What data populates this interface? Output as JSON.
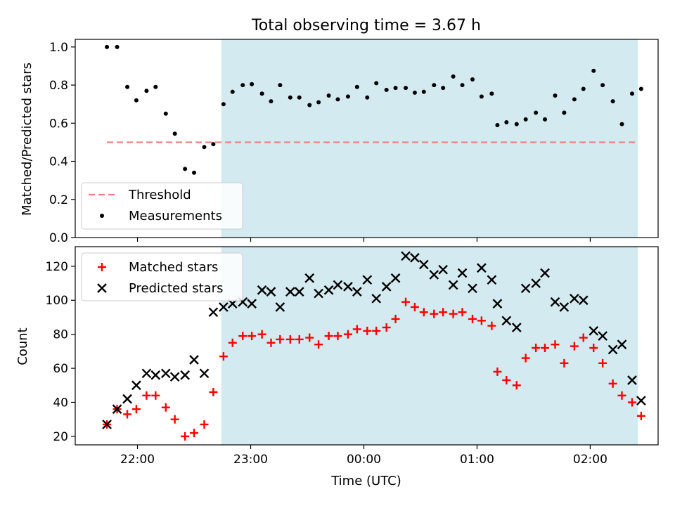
{
  "figure": {
    "title": "Total observing time = 3.67 h",
    "shaded_region_color": "#d3eaf0"
  },
  "chart_data": [
    {
      "type": "scatter",
      "panel": "top",
      "title": "Total observing time = 3.67 h",
      "xlabel": "",
      "ylabel": "Matched/Predicted stars",
      "xlim": [
        21.45,
        26.6
      ],
      "ylim": [
        0.0,
        1.04
      ],
      "yticks": [
        0.0,
        0.2,
        0.4,
        0.6,
        0.8,
        1.0
      ],
      "ytick_labels": [
        "0.0",
        "0.2",
        "0.4",
        "0.6",
        "0.8",
        "1.0"
      ],
      "xticks": [
        22,
        23,
        24,
        25,
        26
      ],
      "xtick_labels": [
        "",
        "",
        "",
        "",
        ""
      ],
      "shaded_x": [
        22.74,
        26.42
      ],
      "legend_position": "lower left",
      "threshold": {
        "name": "Threshold",
        "value": 0.5,
        "x_range": [
          21.73,
          26.42
        ],
        "color": "#f08080"
      },
      "series": [
        {
          "name": "Measurements",
          "color": "#000000",
          "marker": "dot",
          "points": [
            [
              21.73,
              1.0
            ],
            [
              21.82,
              1.0
            ],
            [
              21.91,
              0.79
            ],
            [
              21.99,
              0.72
            ],
            [
              22.08,
              0.77
            ],
            [
              22.16,
              0.79
            ],
            [
              22.25,
              0.65
            ],
            [
              22.33,
              0.545
            ],
            [
              22.42,
              0.36
            ],
            [
              22.5,
              0.34
            ],
            [
              22.59,
              0.475
            ],
            [
              22.67,
              0.49
            ],
            [
              22.76,
              0.7
            ],
            [
              22.84,
              0.765
            ],
            [
              22.93,
              0.8
            ],
            [
              23.01,
              0.805
            ],
            [
              23.1,
              0.755
            ],
            [
              23.18,
              0.715
            ],
            [
              23.26,
              0.8
            ],
            [
              23.35,
              0.735
            ],
            [
              23.43,
              0.735
            ],
            [
              23.52,
              0.695
            ],
            [
              23.6,
              0.71
            ],
            [
              23.69,
              0.745
            ],
            [
              23.77,
              0.725
            ],
            [
              23.86,
              0.74
            ],
            [
              23.94,
              0.79
            ],
            [
              24.03,
              0.735
            ],
            [
              24.11,
              0.81
            ],
            [
              24.2,
              0.775
            ],
            [
              24.28,
              0.785
            ],
            [
              24.37,
              0.785
            ],
            [
              24.45,
              0.76
            ],
            [
              24.53,
              0.765
            ],
            [
              24.62,
              0.8
            ],
            [
              24.7,
              0.785
            ],
            [
              24.79,
              0.845
            ],
            [
              24.87,
              0.8
            ],
            [
              24.96,
              0.83
            ],
            [
              25.04,
              0.74
            ],
            [
              25.13,
              0.755
            ],
            [
              25.18,
              0.59
            ],
            [
              25.26,
              0.605
            ],
            [
              25.35,
              0.595
            ],
            [
              25.43,
              0.62
            ],
            [
              25.52,
              0.655
            ],
            [
              25.6,
              0.62
            ],
            [
              25.69,
              0.745
            ],
            [
              25.77,
              0.655
            ],
            [
              25.86,
              0.725
            ],
            [
              25.94,
              0.78
            ],
            [
              26.03,
              0.875
            ],
            [
              26.11,
              0.8
            ],
            [
              26.2,
              0.715
            ],
            [
              26.28,
              0.595
            ],
            [
              26.37,
              0.755
            ],
            [
              26.45,
              0.78
            ]
          ]
        }
      ]
    },
    {
      "type": "scatter",
      "panel": "bottom",
      "xlabel": "Time (UTC)",
      "ylabel": "Count",
      "xlim": [
        21.45,
        26.6
      ],
      "ylim": [
        15,
        131.5
      ],
      "yticks": [
        20,
        40,
        60,
        80,
        100,
        120
      ],
      "ytick_labels": [
        "20",
        "40",
        "60",
        "80",
        "100",
        "120"
      ],
      "xticks": [
        22,
        23,
        24,
        25,
        26
      ],
      "xtick_labels": [
        "22:00",
        "23:00",
        "00:00",
        "01:00",
        "02:00"
      ],
      "shaded_x": [
        22.74,
        26.42
      ],
      "legend_position": "upper left",
      "series": [
        {
          "name": "Matched stars",
          "color": "#ff0000",
          "marker": "plus",
          "points": [
            [
              21.73,
              27
            ],
            [
              21.82,
              36
            ],
            [
              21.91,
              33
            ],
            [
              21.99,
              36
            ],
            [
              22.08,
              44
            ],
            [
              22.16,
              44
            ],
            [
              22.25,
              37
            ],
            [
              22.33,
              30
            ],
            [
              22.42,
              20
            ],
            [
              22.5,
              22
            ],
            [
              22.59,
              27
            ],
            [
              22.67,
              46
            ],
            [
              22.76,
              67
            ],
            [
              22.84,
              75
            ],
            [
              22.93,
              79
            ],
            [
              23.01,
              79
            ],
            [
              23.1,
              80
            ],
            [
              23.18,
              75
            ],
            [
              23.26,
              77
            ],
            [
              23.35,
              77
            ],
            [
              23.43,
              77
            ],
            [
              23.52,
              78
            ],
            [
              23.6,
              74
            ],
            [
              23.69,
              79
            ],
            [
              23.77,
              79
            ],
            [
              23.86,
              80
            ],
            [
              23.94,
              83
            ],
            [
              24.03,
              82
            ],
            [
              24.11,
              82
            ],
            [
              24.2,
              84
            ],
            [
              24.28,
              89
            ],
            [
              24.37,
              99
            ],
            [
              24.45,
              96
            ],
            [
              24.53,
              93
            ],
            [
              24.62,
              92
            ],
            [
              24.7,
              93
            ],
            [
              24.79,
              92
            ],
            [
              24.87,
              93
            ],
            [
              24.96,
              89
            ],
            [
              25.04,
              88
            ],
            [
              25.13,
              85
            ],
            [
              25.18,
              58
            ],
            [
              25.26,
              53
            ],
            [
              25.35,
              50
            ],
            [
              25.43,
              66
            ],
            [
              25.52,
              72
            ],
            [
              25.6,
              72
            ],
            [
              25.69,
              74
            ],
            [
              25.77,
              63
            ],
            [
              25.86,
              73
            ],
            [
              25.94,
              78
            ],
            [
              26.03,
              72
            ],
            [
              26.11,
              63
            ],
            [
              26.2,
              51
            ],
            [
              26.28,
              44
            ],
            [
              26.37,
              40
            ],
            [
              26.45,
              32
            ]
          ]
        },
        {
          "name": "Predicted stars",
          "color": "#000000",
          "marker": "x",
          "points": [
            [
              21.73,
              27
            ],
            [
              21.82,
              36
            ],
            [
              21.91,
              42
            ],
            [
              21.99,
              50
            ],
            [
              22.08,
              57
            ],
            [
              22.16,
              56
            ],
            [
              22.25,
              57
            ],
            [
              22.33,
              55
            ],
            [
              22.42,
              56
            ],
            [
              22.5,
              65
            ],
            [
              22.59,
              57
            ],
            [
              22.67,
              93
            ],
            [
              22.76,
              96
            ],
            [
              22.84,
              98
            ],
            [
              22.93,
              99
            ],
            [
              23.01,
              98
            ],
            [
              23.1,
              106
            ],
            [
              23.18,
              105
            ],
            [
              23.26,
              96
            ],
            [
              23.35,
              105
            ],
            [
              23.43,
              105
            ],
            [
              23.52,
              113
            ],
            [
              23.6,
              104
            ],
            [
              23.69,
              106
            ],
            [
              23.77,
              109
            ],
            [
              23.86,
              108
            ],
            [
              23.94,
              105
            ],
            [
              24.03,
              112
            ],
            [
              24.11,
              101
            ],
            [
              24.2,
              108
            ],
            [
              24.28,
              113
            ],
            [
              24.37,
              126
            ],
            [
              24.45,
              125
            ],
            [
              24.53,
              121
            ],
            [
              24.62,
              115
            ],
            [
              24.7,
              118
            ],
            [
              24.79,
              109
            ],
            [
              24.87,
              116
            ],
            [
              24.96,
              107
            ],
            [
              25.04,
              119
            ],
            [
              25.13,
              112
            ],
            [
              25.18,
              98
            ],
            [
              25.26,
              88
            ],
            [
              25.35,
              84
            ],
            [
              25.43,
              107
            ],
            [
              25.52,
              110
            ],
            [
              25.6,
              116
            ],
            [
              25.69,
              99
            ],
            [
              25.77,
              96
            ],
            [
              25.86,
              101
            ],
            [
              25.94,
              100
            ],
            [
              26.03,
              82
            ],
            [
              26.11,
              79
            ],
            [
              26.2,
              71
            ],
            [
              26.28,
              74
            ],
            [
              26.37,
              53
            ],
            [
              26.45,
              41
            ]
          ]
        }
      ]
    }
  ]
}
